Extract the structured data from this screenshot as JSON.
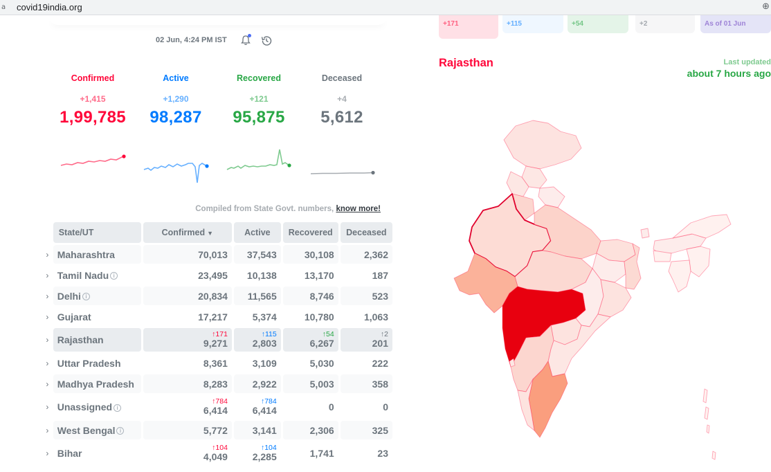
{
  "browser": {
    "url": "covid19india.org"
  },
  "header": {
    "timestamp": "02 Jun, 4:24 PM IST"
  },
  "level": [
    {
      "label": "Confirmed",
      "delta": "+1,415",
      "total": "1,99,785"
    },
    {
      "label": "Active",
      "delta": "+1,290",
      "total": "98,287"
    },
    {
      "label": "Recovered",
      "delta": "+121",
      "total": "95,875"
    },
    {
      "label": "Deceased",
      "delta": "+4",
      "total": "5,612"
    }
  ],
  "compiled": {
    "text": "Compiled from State Govt. numbers,",
    "link": "know more!"
  },
  "table": {
    "headers": [
      "State/UT",
      "Confirmed",
      "Active",
      "Recovered",
      "Deceased"
    ],
    "rows": [
      {
        "name": "Maharashtra",
        "confirmed": "70,013",
        "active": "37,543",
        "recovered": "30,108",
        "deceased": "2,362"
      },
      {
        "name": "Tamil Nadu",
        "confirmed": "23,495",
        "active": "10,138",
        "recovered": "13,170",
        "deceased": "187"
      },
      {
        "name": "Delhi",
        "confirmed": "20,834",
        "active": "11,565",
        "recovered": "8,746",
        "deceased": "523"
      },
      {
        "name": "Gujarat",
        "confirmed": "17,217",
        "active": "5,374",
        "recovered": "10,780",
        "deceased": "1,063"
      },
      {
        "name": "Rajasthan",
        "d_confirmed": "↑171",
        "confirmed": "9,271",
        "d_active": "↑115",
        "active": "2,803",
        "d_recovered": "↑54",
        "recovered": "6,267",
        "d_deceased": "↑2",
        "deceased": "201"
      },
      {
        "name": "Uttar Pradesh",
        "confirmed": "8,361",
        "active": "3,109",
        "recovered": "5,030",
        "deceased": "222"
      },
      {
        "name": "Madhya Pradesh",
        "confirmed": "8,283",
        "active": "2,922",
        "recovered": "5,003",
        "deceased": "358"
      },
      {
        "name": "Unassigned",
        "d_confirmed": "↑784",
        "confirmed": "6,414",
        "d_active": "↑784",
        "active": "6,414",
        "recovered": "0",
        "deceased": "0"
      },
      {
        "name": "West Bengal",
        "confirmed": "5,772",
        "active": "3,141",
        "recovered": "2,306",
        "deceased": "325"
      },
      {
        "name": "Bihar",
        "d_confirmed": "↑104",
        "confirmed": "4,049",
        "d_active": "↑104",
        "active": "2,285",
        "recovered": "1,741",
        "deceased": "23"
      }
    ]
  },
  "map_panel": {
    "pills": [
      "+171",
      "+115",
      "+54",
      "+2",
      "As of 01 Jun"
    ],
    "region": "Rajasthan",
    "last_updated_label": "Last updated",
    "last_updated_value": "about 7 hours ago"
  },
  "colors": {
    "confirmed": "#ff073a",
    "active": "#007bff",
    "recovered": "#28a745",
    "deceased": "#6c757d"
  },
  "icons": [
    "bell-icon",
    "history-icon",
    "chevron-right-icon",
    "info-icon",
    "sort-down-icon"
  ]
}
